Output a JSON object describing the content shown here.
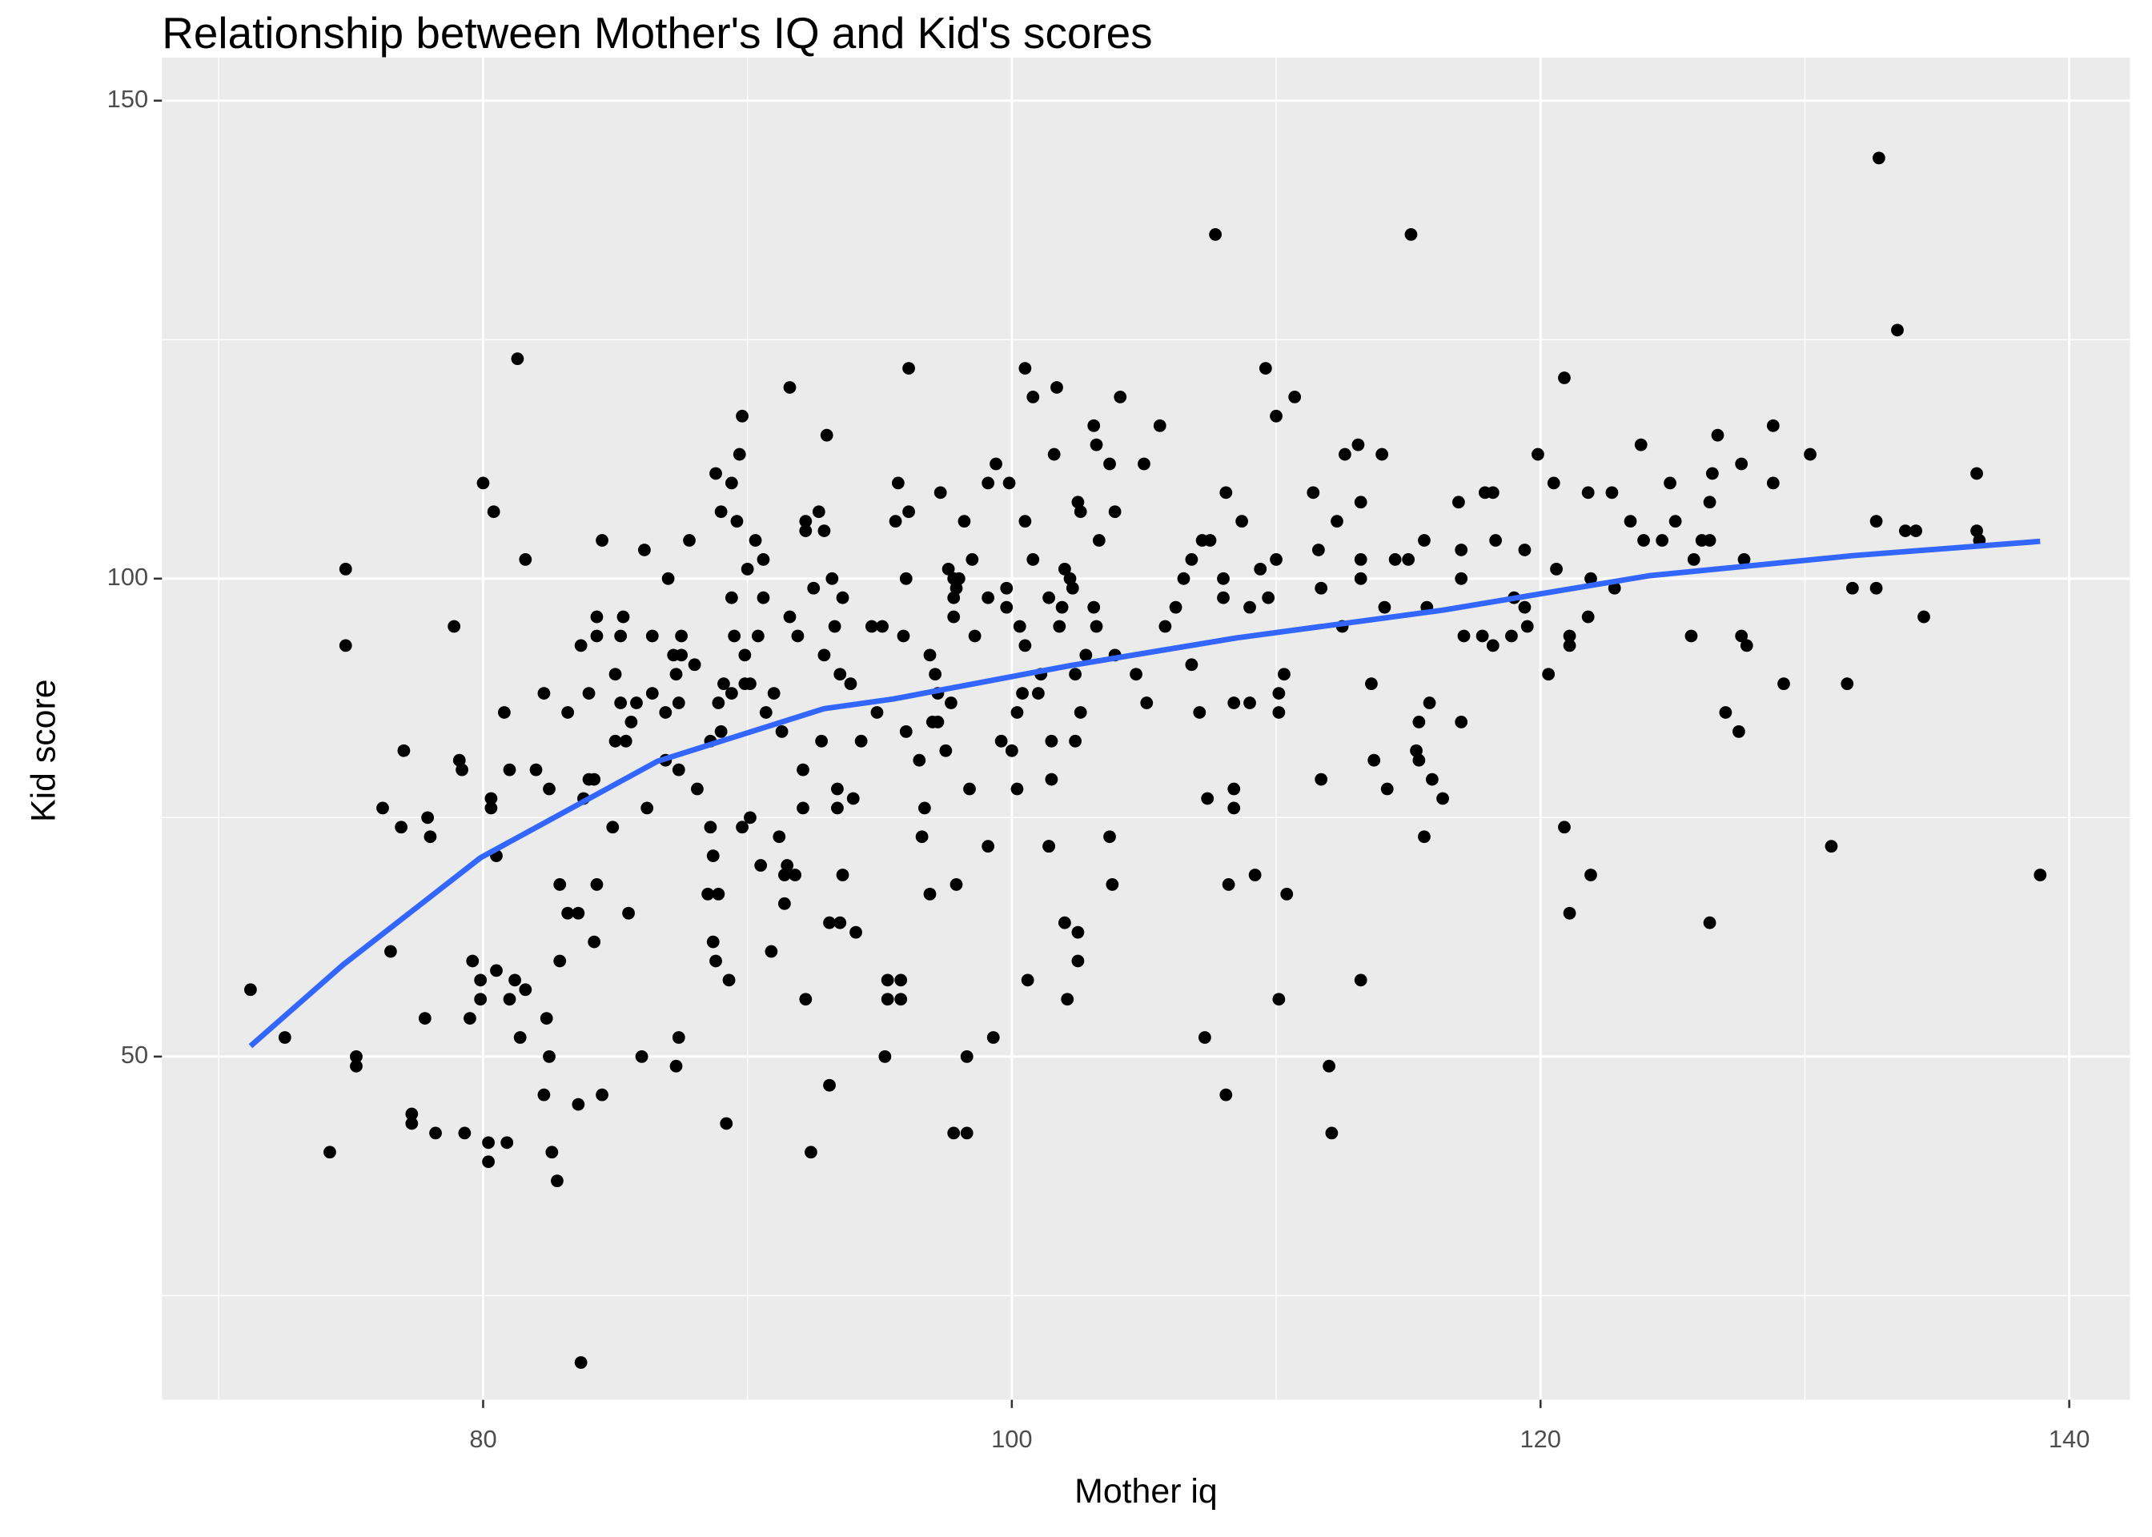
{
  "chart_data": {
    "type": "scatter",
    "title": "Relationship between Mother's IQ and Kid's scores",
    "x_label": "Mother iq",
    "y_label": "Kid score",
    "xlim": [
      67.85,
      142.3
    ],
    "ylim": [
      14.1,
      154.5
    ],
    "xticks": [
      80,
      100,
      120,
      140
    ],
    "yticks": [
      50,
      100,
      150
    ],
    "xminor": [
      70,
      90,
      110,
      130
    ],
    "yminor": [
      25,
      75,
      125
    ],
    "grid": true,
    "points": {
      "color": "#000000",
      "x": [
        71.2,
        72.5,
        74.2,
        74.8,
        74.8,
        75.2,
        75.2,
        76.2,
        76.5,
        76.9,
        77,
        77.3,
        77.3,
        77.8,
        77.9,
        78,
        78.2,
        78.9,
        79.1,
        79.2,
        79.3,
        79.5,
        79.6,
        79.9,
        79.9,
        80,
        80.3,
        80.3,
        80.4,
        80.2,
        80.2,
        80.5,
        80.5,
        80.8,
        80.9,
        81,
        81,
        81.2,
        81.3,
        81.4,
        81.6,
        81.6,
        82,
        82.3,
        82.5,
        82.4,
        82.5,
        82.3,
        82.6,
        82.8,
        82.9,
        82.9,
        83.2,
        83.2,
        83.6,
        83.7,
        83.6,
        83.7,
        83.8,
        84,
        84,
        84.2,
        84.2,
        84.3,
        84.3,
        84.3,
        84.5,
        84.5,
        84.9,
        85,
        85,
        85.2,
        85.2,
        85.3,
        85.4,
        85.5,
        85.6,
        85.8,
        86,
        86.1,
        86.2,
        86.4,
        86.4,
        86.9,
        86.9,
        87,
        87.2,
        87.3,
        87.4,
        87.4,
        87.4,
        87.3,
        87.5,
        87.5,
        87.8,
        88,
        88.1,
        88.5,
        88.6,
        88.6,
        88.7,
        88.7,
        88.8,
        88.9,
        88.8,
        89,
        88.9,
        89,
        89.1,
        89.2,
        89.3,
        89.4,
        89.4,
        89.4,
        89.5,
        89.6,
        89.7,
        89.8,
        89.8,
        89.9,
        89.9,
        90,
        90.1,
        90.1,
        90.3,
        90.4,
        90.5,
        90.6,
        90.6,
        90.7,
        90.9,
        91,
        91.2,
        91.3,
        91.4,
        91.4,
        91.5,
        91.6,
        91.6,
        91.8,
        91.9,
        92.1,
        92.2,
        92.2,
        92.1,
        92.2,
        92.4,
        92.5,
        92.7,
        92.8,
        92.9,
        92.9,
        93,
        93.1,
        93.1,
        93.2,
        93.3,
        93.4,
        93.4,
        93.5,
        93.5,
        93.6,
        93.6,
        93.9,
        94,
        94.1,
        94.3,
        94.7,
        94.9,
        95.1,
        95.3,
        95.3,
        95.2,
        95.6,
        95.7,
        95.8,
        95.8,
        95.9,
        96,
        96,
        96.1,
        96.1,
        96.5,
        96.6,
        96.7,
        96.9,
        96.9,
        97,
        97.1,
        97.2,
        97.2,
        97.3,
        97.5,
        97.6,
        97.7,
        97.8,
        97.8,
        97.8,
        97.8,
        97.9,
        97.9,
        98,
        98.2,
        98.3,
        98.3,
        98.4,
        98.5,
        98.6,
        99.1,
        99.1,
        99.1,
        99.3,
        99.4,
        99.6,
        99.8,
        99.8,
        99.9,
        100.5,
        100.8,
        100.5,
        100.8,
        100.3,
        100.5,
        100.4,
        100.2,
        100,
        100.2,
        100.6,
        101.4,
        101,
        101.1,
        101.5,
        101.5,
        101.4,
        101.4,
        101.6,
        101.7,
        101.8,
        101.9,
        102,
        102,
        102.1,
        102.2,
        102.3,
        102.4,
        102.4,
        102.5,
        102.5,
        102.5,
        102.6,
        102.6,
        102.8,
        103.1,
        103.2,
        103.1,
        103.2,
        103.3,
        103.7,
        103.7,
        103.8,
        103.9,
        103.9,
        104.1,
        104.7,
        105,
        105.1,
        105.6,
        105.8,
        106.2,
        106.5,
        106.8,
        106.8,
        107.1,
        107.2,
        107.4,
        107.5,
        107.3,
        107.7,
        108,
        108,
        108.1,
        108.2,
        108.1,
        108.4,
        108.4,
        108.4,
        108.7,
        109,
        109,
        109.2,
        109.4,
        109.6,
        109.7,
        110,
        110,
        110.1,
        110.1,
        110.3,
        110.4,
        110.1,
        110.7,
        111.4,
        111.6,
        111.7,
        111.7,
        112.3,
        112.5,
        112,
        112.1,
        112.6,
        113.1,
        113.2,
        113.2,
        113.2,
        113.2,
        113.6,
        113.7,
        114,
        114.1,
        114.2,
        114.5,
        115,
        115.1,
        115.3,
        115.4,
        115.4,
        115.6,
        115.7,
        115.6,
        115.9,
        115.8,
        116.3,
        116.9,
        117,
        117,
        117,
        117.1,
        117.8,
        117.9,
        118.2,
        118.2,
        118.3,
        118.9,
        119,
        119.4,
        119.5,
        119.4,
        119.9,
        120.3,
        120.5,
        120.6,
        120.9,
        120.9,
        121.1,
        121.1,
        121.1,
        121.8,
        121.8,
        121.9,
        121.9,
        122.7,
        122.8,
        123.4,
        123.8,
        123.9,
        124.6,
        124.9,
        125.1,
        125.7,
        125.8,
        126.1,
        126.4,
        126.4,
        126.4,
        126.5,
        126.7,
        127,
        127.6,
        127.5,
        127.6,
        127.7,
        127.8,
        128.8,
        128.8,
        129.2,
        130.2,
        131,
        131.6,
        131.8,
        132.7,
        132.7,
        132.8,
        133.5,
        133.8,
        134.2,
        134.5,
        136.5,
        136.5,
        136.6,
        138.9
      ],
      "values": [
        57,
        52,
        40,
        101,
        93,
        50,
        49,
        76,
        61,
        74,
        82,
        44,
        43,
        54,
        75,
        73,
        42,
        95,
        81,
        80,
        42,
        54,
        60,
        58,
        56,
        110,
        77,
        76,
        107,
        41,
        39,
        59,
        71,
        86,
        41,
        80,
        56,
        58,
        123,
        52,
        57,
        102,
        80,
        88,
        50,
        54,
        78,
        46,
        40,
        37,
        60,
        68,
        86,
        65,
        65,
        93,
        45,
        18,
        77,
        79,
        88,
        79,
        62,
        94,
        96,
        68,
        104,
        46,
        74,
        83,
        90,
        87,
        94,
        96,
        83,
        65,
        85,
        87,
        50,
        103,
        76,
        88,
        94,
        81,
        86,
        100,
        92,
        90,
        87,
        80,
        52,
        49,
        94,
        92,
        104,
        91,
        78,
        67,
        74,
        83,
        71,
        62,
        60,
        67,
        111,
        107,
        87,
        84,
        89,
        43,
        58,
        88,
        98,
        110,
        94,
        106,
        113,
        74,
        117,
        89,
        92,
        101,
        75,
        89,
        104,
        94,
        70,
        102,
        98,
        86,
        61,
        88,
        73,
        84,
        66,
        69,
        70,
        96,
        120,
        69,
        94,
        76,
        105,
        106,
        80,
        56,
        40,
        99,
        107,
        83,
        92,
        105,
        115,
        47,
        64,
        100,
        95,
        76,
        78,
        90,
        64,
        69,
        98,
        89,
        77,
        63,
        83,
        95,
        86,
        95,
        56,
        58,
        50,
        106,
        110,
        56,
        58,
        94,
        84,
        100,
        107,
        122,
        81,
        73,
        76,
        67,
        92,
        85,
        90,
        88,
        85,
        109,
        82,
        101,
        87,
        96,
        98,
        100,
        42,
        68,
        99,
        100,
        106,
        42,
        50,
        78,
        102,
        94,
        98,
        72,
        110,
        52,
        112,
        83,
        99,
        97,
        110,
        122,
        119,
        106,
        102,
        95,
        93,
        88,
        86,
        82,
        78,
        58,
        72,
        88,
        90,
        79,
        83,
        72,
        98,
        113,
        120,
        95,
        97,
        101,
        64,
        56,
        100,
        99,
        90,
        83,
        60,
        63,
        108,
        107,
        86,
        92,
        116,
        114,
        97,
        95,
        104,
        112,
        73,
        68,
        107,
        92,
        119,
        90,
        112,
        87,
        116,
        95,
        97,
        100,
        91,
        102,
        86,
        104,
        77,
        104,
        52,
        136,
        100,
        98,
        109,
        68,
        46,
        76,
        78,
        87,
        106,
        97,
        87,
        69,
        101,
        122,
        98,
        117,
        102,
        86,
        88,
        90,
        67,
        56,
        119,
        109,
        103,
        99,
        79,
        106,
        95,
        49,
        42,
        113,
        114,
        108,
        102,
        100,
        58,
        89,
        81,
        113,
        97,
        78,
        102,
        102,
        136,
        82,
        85,
        81,
        104,
        97,
        73,
        79,
        87,
        77,
        108,
        100,
        103,
        85,
        94,
        94,
        109,
        109,
        93,
        104,
        94,
        98,
        103,
        95,
        97,
        113,
        90,
        110,
        101,
        74,
        121,
        94,
        93,
        65,
        96,
        109,
        100,
        69,
        109,
        99,
        106,
        114,
        104,
        104,
        110,
        106,
        94,
        102,
        104,
        108,
        104,
        64,
        111,
        115,
        86,
        112,
        84,
        94,
        102,
        93,
        116,
        110,
        89,
        113,
        72,
        89,
        99,
        106,
        99,
        144,
        126,
        105,
        105,
        96,
        111,
        105,
        104,
        69
      ]
    },
    "smooth": {
      "color": "#3366ff",
      "x": [
        71.2,
        74.7,
        79.9,
        86.6,
        92.9,
        95.5,
        102.2,
        108.5,
        116.3,
        124.1,
        131.8,
        138.9
      ],
      "values": [
        51.1,
        59.6,
        70.8,
        80.9,
        86.4,
        87.4,
        90.9,
        93.8,
        96.7,
        100.3,
        102.4,
        103.9
      ]
    }
  }
}
